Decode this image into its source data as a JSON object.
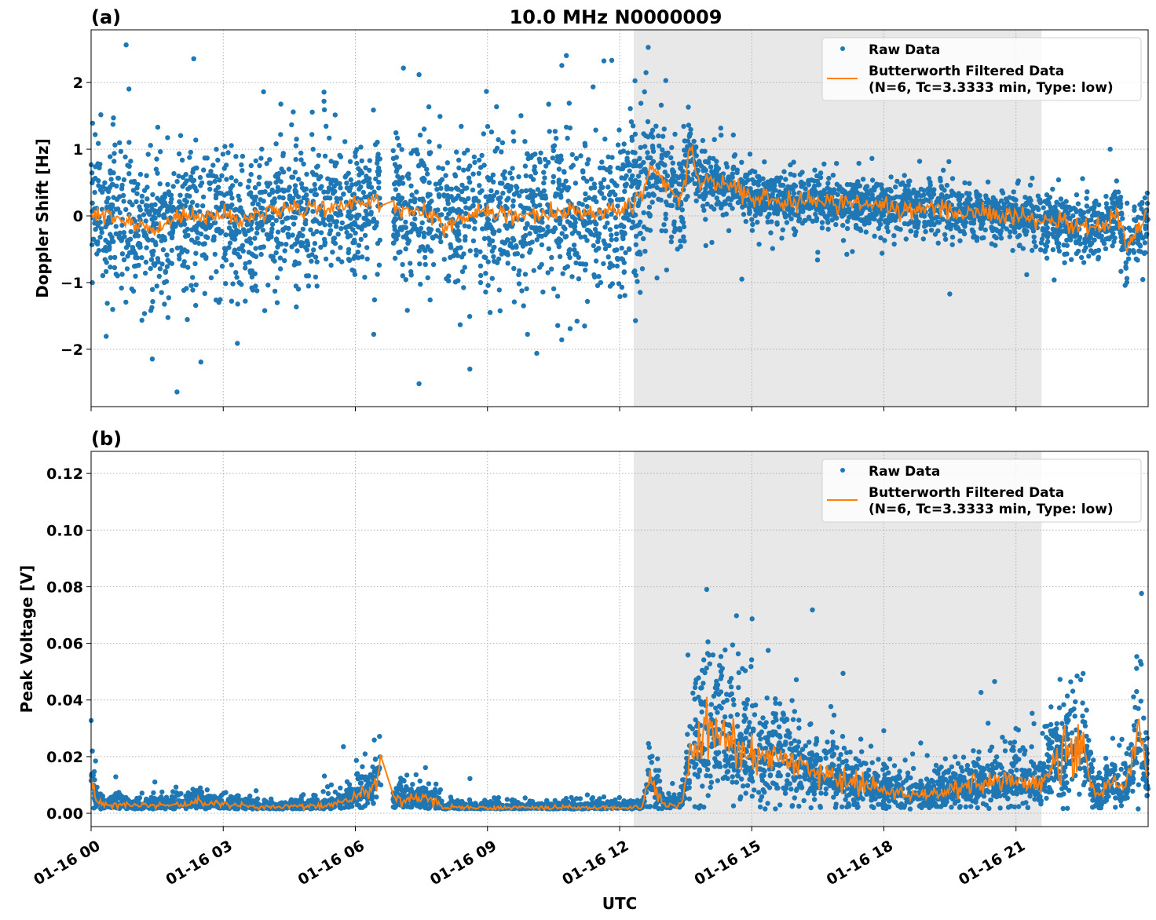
{
  "chart_data": [
    {
      "type": "scatter+line",
      "panel_label": "(a)",
      "title": "10.0 MHz N0000009",
      "xlabel": "",
      "ylabel": "Doppler Shift [Hz]",
      "x_unit": "hours UTC on 01-16",
      "xlim": [
        0,
        24
      ],
      "ylim": [
        -2.86,
        2.79
      ],
      "yticks": [
        -2,
        -1,
        0,
        1,
        2
      ],
      "ytick_labels": [
        "−2",
        "−1",
        "0",
        "1",
        "2"
      ],
      "grid": true,
      "shaded_region_hours": [
        12.32,
        21.58
      ],
      "data_gaps_hours": [
        [
          6.58,
          6.85
        ]
      ],
      "legend": {
        "placement": "top-right",
        "entries": [
          "Raw Data",
          "Butterworth Filtered Data",
          "(N=6, Tc=3.3333 min, Type: low)"
        ]
      },
      "series": [
        {
          "name": "Raw Data",
          "kind": "scatter",
          "color": "#1f77b4",
          "spread_hz": [
            [
              0,
              0.5
            ],
            [
              6.5,
              0.5
            ],
            [
              6.9,
              0.55
            ],
            [
              12.6,
              0.55
            ],
            [
              12.65,
              0.42
            ],
            [
              13.5,
              0.42
            ],
            [
              13.6,
              0.2
            ],
            [
              21,
              0.18
            ],
            [
              22.5,
              0.22
            ],
            [
              24,
              0.25
            ]
          ]
        },
        {
          "name": "Butterworth Filtered Data",
          "kind": "line",
          "color": "#ff7f0e",
          "points": [
            [
              0,
              0.05
            ],
            [
              1,
              -0.1
            ],
            [
              1.5,
              -0.2
            ],
            [
              2,
              0
            ],
            [
              3,
              0
            ],
            [
              3.5,
              -0.1
            ],
            [
              4,
              0.1
            ],
            [
              5,
              0.1
            ],
            [
              6,
              0.15
            ],
            [
              6.5,
              0.2
            ],
            [
              7,
              0.1
            ],
            [
              7.5,
              0.1
            ],
            [
              8,
              -0.1
            ],
            [
              9,
              0.05
            ],
            [
              10,
              0
            ],
            [
              11,
              0.05
            ],
            [
              12,
              0.1
            ],
            [
              12.5,
              0.3
            ],
            [
              12.75,
              0.8
            ],
            [
              13,
              0.5
            ],
            [
              13.4,
              0.2
            ],
            [
              13.6,
              1.0
            ],
            [
              13.8,
              0.55
            ],
            [
              14.5,
              0.45
            ],
            [
              15,
              0.3
            ],
            [
              16,
              0.2
            ],
            [
              17,
              0.2
            ],
            [
              18,
              0.15
            ],
            [
              19,
              0.1
            ],
            [
              20,
              0.05
            ],
            [
              21,
              0
            ],
            [
              22,
              -0.1
            ],
            [
              23,
              -0.2
            ],
            [
              23.3,
              0.1
            ],
            [
              23.5,
              -0.5
            ],
            [
              24,
              0.05
            ]
          ]
        }
      ]
    },
    {
      "type": "scatter+line",
      "panel_label": "(b)",
      "xlabel": "UTC",
      "ylabel": "Peak Voltage [V]",
      "xlim": [
        0,
        24
      ],
      "ylim": [
        -0.0047,
        0.1278
      ],
      "yticks": [
        0,
        0.02,
        0.04,
        0.06,
        0.08,
        0.1,
        0.12
      ],
      "ytick_labels": [
        "0.00",
        "0.02",
        "0.04",
        "0.06",
        "0.08",
        "0.10",
        "0.12"
      ],
      "xticks": [
        0,
        3,
        6,
        9,
        12,
        15,
        18,
        21
      ],
      "xtick_labels": [
        "01-16 00",
        "01-16 03",
        "01-16 06",
        "01-16 09",
        "01-16 12",
        "01-16 15",
        "01-16 18",
        "01-16 21"
      ],
      "grid": true,
      "shaded_region_hours": [
        12.32,
        21.58
      ],
      "data_gaps_hours": [
        [
          6.58,
          6.85
        ]
      ],
      "legend": {
        "placement": "top-right",
        "entries": [
          "Raw Data",
          "Butterworth Filtered Data",
          "(N=6, Tc=3.3333 min, Type: low)"
        ]
      },
      "series": [
        {
          "name": "Raw Data",
          "kind": "scatter",
          "color": "#1f77b4",
          "relative_spread": 0.55
        },
        {
          "name": "Butterworth Filtered Data",
          "kind": "line",
          "color": "#ff7f0e",
          "points": [
            [
              0,
              0.015
            ],
            [
              0.1,
              0.005
            ],
            [
              0.3,
              0.003
            ],
            [
              2,
              0.003
            ],
            [
              2.5,
              0.004
            ],
            [
              3,
              0.003
            ],
            [
              4,
              0.002
            ],
            [
              5.5,
              0.003
            ],
            [
              6,
              0.006
            ],
            [
              6.5,
              0.01
            ],
            [
              6.6,
              0.025
            ],
            [
              6.8,
              0.005
            ],
            [
              7.5,
              0.005
            ],
            [
              7.8,
              0.005
            ],
            [
              8,
              0.002
            ],
            [
              12.5,
              0.002
            ],
            [
              12.7,
              0.012
            ],
            [
              13,
              0.003
            ],
            [
              13.4,
              0.003
            ],
            [
              13.6,
              0.02
            ],
            [
              14,
              0.03
            ],
            [
              14.5,
              0.025
            ],
            [
              15,
              0.02
            ],
            [
              16,
              0.018
            ],
            [
              17,
              0.012
            ],
            [
              18,
              0.008
            ],
            [
              19,
              0.006
            ],
            [
              20,
              0.01
            ],
            [
              21,
              0.012
            ],
            [
              21.5,
              0.01
            ],
            [
              22,
              0.02
            ],
            [
              22.5,
              0.025
            ],
            [
              22.8,
              0.005
            ],
            [
              23,
              0.01
            ],
            [
              23.5,
              0.01
            ],
            [
              23.8,
              0.03
            ],
            [
              24,
              0.008
            ]
          ]
        }
      ]
    }
  ]
}
